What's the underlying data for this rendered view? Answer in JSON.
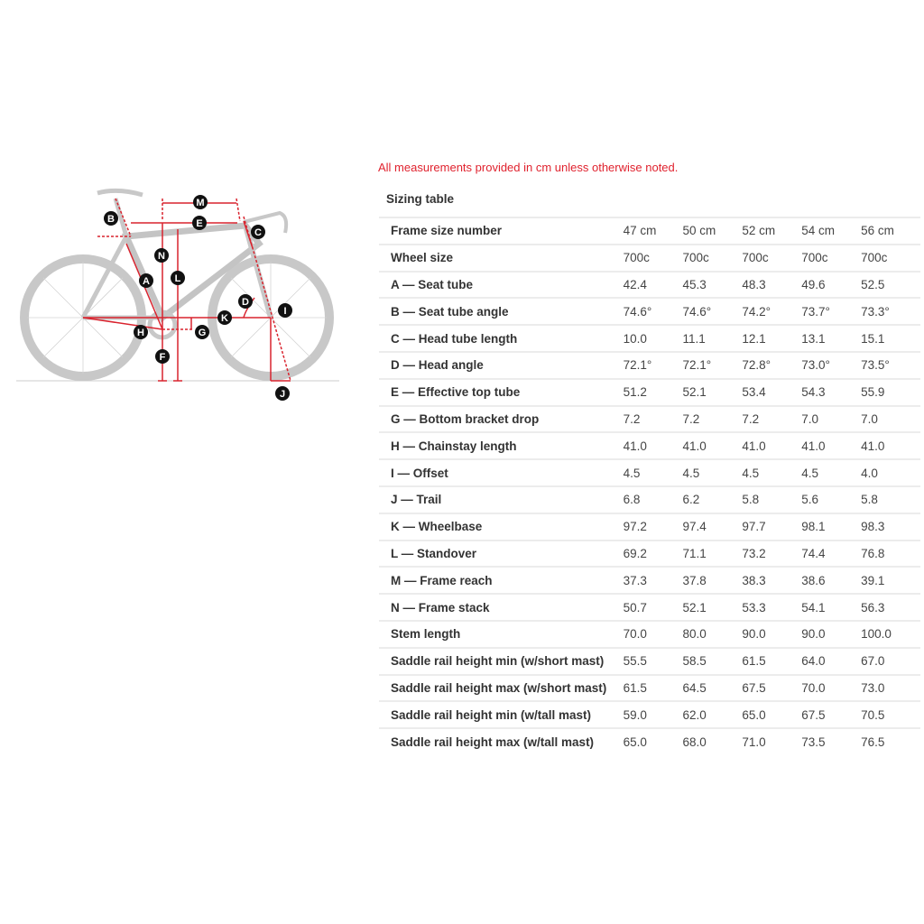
{
  "note": "All measurements provided in cm unless otherwise noted.",
  "table_title": "Sizing table",
  "colors": {
    "accent": "#e0222e",
    "dimension_lines": "#d9232e",
    "bike": "#c8c8c8"
  },
  "diagram_labels": {
    "A": "A",
    "B": "B",
    "C": "C",
    "D": "D",
    "E": "E",
    "F": "F",
    "G": "G",
    "H": "H",
    "I": "I",
    "J": "J",
    "K": "K",
    "L": "L",
    "M": "M",
    "N": "N"
  },
  "rows": [
    {
      "label": "Frame size number",
      "values": [
        "47 cm",
        "50 cm",
        "52 cm",
        "54 cm",
        "56 cm"
      ]
    },
    {
      "label": "Wheel size",
      "values": [
        "700c",
        "700c",
        "700c",
        "700c",
        "700c"
      ]
    },
    {
      "label": "A — Seat tube",
      "values": [
        "42.4",
        "45.3",
        "48.3",
        "49.6",
        "52.5"
      ]
    },
    {
      "label": "B — Seat tube angle",
      "values": [
        "74.6°",
        "74.6°",
        "74.2°",
        "73.7°",
        "73.3°"
      ]
    },
    {
      "label": "C — Head tube length",
      "values": [
        "10.0",
        "11.1",
        "12.1",
        "13.1",
        "15.1"
      ]
    },
    {
      "label": "D — Head angle",
      "values": [
        "72.1°",
        "72.1°",
        "72.8°",
        "73.0°",
        "73.5°"
      ]
    },
    {
      "label": "E — Effective top tube",
      "values": [
        "51.2",
        "52.1",
        "53.4",
        "54.3",
        "55.9"
      ]
    },
    {
      "label": "G — Bottom bracket drop",
      "values": [
        "7.2",
        "7.2",
        "7.2",
        "7.0",
        "7.0"
      ]
    },
    {
      "label": "H — Chainstay length",
      "values": [
        "41.0",
        "41.0",
        "41.0",
        "41.0",
        "41.0"
      ]
    },
    {
      "label": "I — Offset",
      "values": [
        "4.5",
        "4.5",
        "4.5",
        "4.5",
        "4.0"
      ]
    },
    {
      "label": "J — Trail",
      "values": [
        "6.8",
        "6.2",
        "5.8",
        "5.6",
        "5.8"
      ]
    },
    {
      "label": "K — Wheelbase",
      "values": [
        "97.2",
        "97.4",
        "97.7",
        "98.1",
        "98.3"
      ]
    },
    {
      "label": "L — Standover",
      "values": [
        "69.2",
        "71.1",
        "73.2",
        "74.4",
        "76.8"
      ]
    },
    {
      "label": "M — Frame reach",
      "values": [
        "37.3",
        "37.8",
        "38.3",
        "38.6",
        "39.1"
      ]
    },
    {
      "label": "N — Frame stack",
      "values": [
        "50.7",
        "52.1",
        "53.3",
        "54.1",
        "56.3"
      ]
    },
    {
      "label": "Stem length",
      "values": [
        "70.0",
        "80.0",
        "90.0",
        "90.0",
        "100.0"
      ]
    },
    {
      "label": "Saddle rail height min (w/short mast)",
      "values": [
        "55.5",
        "58.5",
        "61.5",
        "64.0",
        "67.0"
      ]
    },
    {
      "label": "Saddle rail height max (w/short mast)",
      "values": [
        "61.5",
        "64.5",
        "67.5",
        "70.0",
        "73.0"
      ]
    },
    {
      "label": "Saddle rail height min (w/tall mast)",
      "values": [
        "59.0",
        "62.0",
        "65.0",
        "67.5",
        "70.5"
      ]
    },
    {
      "label": "Saddle rail height max (w/tall mast)",
      "values": [
        "65.0",
        "68.0",
        "71.0",
        "73.5",
        "76.5"
      ]
    }
  ]
}
